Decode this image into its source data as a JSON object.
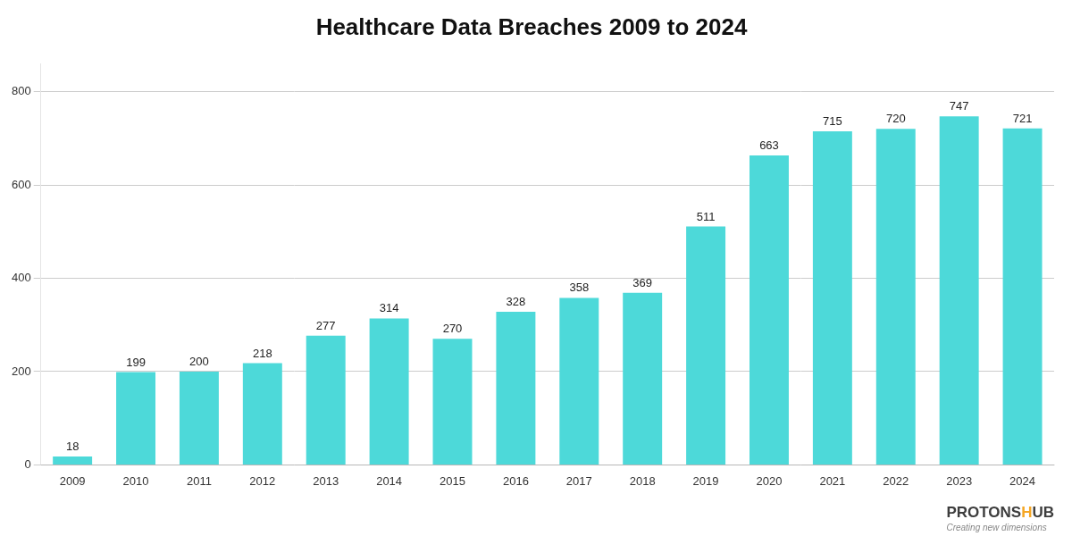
{
  "chart_data": {
    "type": "bar",
    "title": "Healthcare Data Breaches 2009 to 2024",
    "categories": [
      "2009",
      "2010",
      "2011",
      "2012",
      "2013",
      "2014",
      "2015",
      "2016",
      "2017",
      "2018",
      "2019",
      "2020",
      "2021",
      "2022",
      "2023",
      "2024"
    ],
    "values": [
      18,
      199,
      200,
      218,
      277,
      314,
      270,
      328,
      358,
      369,
      511,
      663,
      715,
      720,
      747,
      721
    ],
    "color": "#4DD9D9",
    "ylim": [
      0,
      860
    ],
    "yticks": [
      0,
      200,
      400,
      600,
      800
    ],
    "grid": true,
    "data_labels": true,
    "annotations": [
      "PROTONS",
      "H",
      "UB",
      "Creating new dimensions"
    ]
  }
}
